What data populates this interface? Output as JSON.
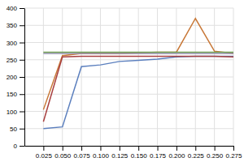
{
  "chart_data": {
    "type": "line",
    "x": [
      0.025,
      0.05,
      0.075,
      0.1,
      0.125,
      0.15,
      0.175,
      0.2,
      0.225,
      0.25,
      0.275
    ],
    "series": [
      {
        "color": "#5b7fbe",
        "values": [
          50,
          55,
          230,
          235,
          245,
          248,
          252,
          258,
          260,
          260,
          260
        ]
      },
      {
        "color": "#c87838",
        "values": [
          105,
          262,
          268,
          268,
          268,
          270,
          272,
          272,
          370,
          275,
          268
        ]
      },
      {
        "color": "#70a050",
        "values": [
          272,
          272,
          272,
          272,
          272,
          272,
          272,
          272,
          272,
          272,
          272
        ]
      },
      {
        "color": "#9090aa",
        "values": [
          268,
          268,
          268,
          268,
          268,
          268,
          268,
          268,
          268,
          268,
          268
        ]
      },
      {
        "color": "#a84040",
        "values": [
          70,
          258,
          260,
          260,
          260,
          260,
          260,
          260,
          260,
          260,
          258
        ]
      }
    ],
    "xlim": [
      0.0,
      0.275
    ],
    "ylim": [
      0,
      400
    ],
    "xticks": [
      0.025,
      {
        "value": 0.05,
        "label": "0.050"
      },
      0.075,
      {
        "value": 0.1,
        "label": "0.100"
      },
      0.125,
      {
        "value": 0.15,
        "label": "0.150"
      },
      0.175,
      {
        "value": 0.2,
        "label": "0.200"
      },
      0.225,
      {
        "value": 0.25,
        "label": "0.250"
      },
      0.275
    ],
    "yticks": [
      0,
      50,
      100,
      150,
      200,
      250,
      300,
      350,
      400
    ],
    "grid": true
  }
}
